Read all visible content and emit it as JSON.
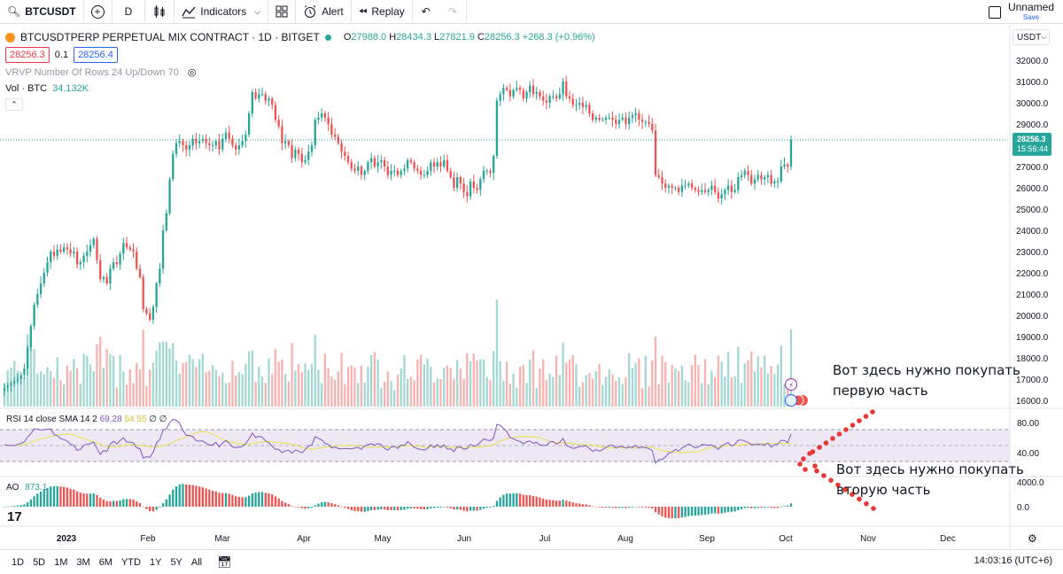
{
  "toolbar": {
    "symbol": "BTCUSDT",
    "interval": "D",
    "indicators_label": "Indicators",
    "alert_label": "Alert",
    "replay_label": "Replay",
    "layout_name": "Unnamed",
    "save_label": "Save"
  },
  "legend": {
    "title": "BTCUSDTPERP PERPETUAL MIX CONTRACT · 1D · BITGET",
    "o_label": "O",
    "o": "27988.0",
    "h_label": "H",
    "h": "28434.3",
    "l_label": "L",
    "l": "27821.9",
    "c_label": "C",
    "c": "28256.3",
    "change": "+268.3 (+0.96%)",
    "bid": "28256.3",
    "spread": "0.1",
    "ask": "28256.4",
    "vrvp": "VRVP Number Of Rows 24 Up/Down 70",
    "vol_label": "Vol · BTC",
    "vol_value": "34.132K"
  },
  "currency": "USDT",
  "price_tag": {
    "price": "28256.3",
    "countdown": "15:56:44"
  },
  "rsi": {
    "label": "RSI 14 close SMA 14 2",
    "v1": "69.28",
    "v2": "54.55",
    "z1": "∅",
    "z2": "∅"
  },
  "ao": {
    "label": "AO",
    "value": "873.1"
  },
  "annotations": {
    "buy1_line1": "Вот здесь нужно покупать",
    "buy1_line2": "первую часть",
    "buy2_line1": "Вот здесь нужно покупать",
    "buy2_line2": "вторую часть"
  },
  "bottom": {
    "ranges": [
      "1D",
      "5D",
      "1M",
      "3M",
      "6M",
      "YTD",
      "1Y",
      "5Y",
      "All"
    ],
    "clock": "14:03:16 (UTC+6)"
  },
  "colors": {
    "up": "#26a69a",
    "down": "#ef5350",
    "rsi_line": "#7e57c2",
    "rsi_sma": "#e8e24a",
    "rsi_band": "#ede7f6",
    "accent": "#2962ff"
  },
  "chart_data": [
    {
      "type": "candlestick",
      "title": "BTCUSDTPERP PERPETUAL MIX CONTRACT · 1D · BITGET",
      "x_ticks": [
        "2023",
        "Feb",
        "Mar",
        "Apr",
        "May",
        "Jun",
        "Jul",
        "Aug",
        "Sep",
        "Oct",
        "Nov",
        "Dec"
      ],
      "y_ticks": [
        "16000.0",
        "17000.0",
        "18000.0",
        "19000.0",
        "20000.0",
        "21000.0",
        "22000.0",
        "23000.0",
        "24000.0",
        "25000.0",
        "26000.0",
        "27000.0",
        "28000.0",
        "29000.0",
        "30000.0",
        "31000.0",
        "32000.0"
      ],
      "ylim": [
        16000,
        32300
      ],
      "last_price": 28256.3,
      "closes": [
        16600,
        16700,
        16800,
        16900,
        17000,
        17200,
        17500,
        18500,
        19500,
        20500,
        21000,
        21500,
        22000,
        22500,
        23000,
        22800,
        23100,
        23000,
        23200,
        23100,
        22900,
        23000,
        22400,
        22500,
        22800,
        23000,
        23300,
        23600,
        22600,
        21700,
        21800,
        21500,
        22200,
        22500,
        22400,
        22900,
        23400,
        23200,
        23100,
        23000,
        22200,
        21800,
        20300,
        20100,
        19800,
        20400,
        21500,
        22200,
        24000,
        24800,
        26400,
        27600,
        28100,
        28200,
        28000,
        27800,
        28000,
        28300,
        28100,
        28200,
        28300,
        28100,
        28000,
        28000,
        28200,
        27800,
        28300,
        28600,
        28300,
        28000,
        27800,
        28000,
        28200,
        28500,
        29500,
        30500,
        30200,
        30400,
        30400,
        30100,
        30200,
        29900,
        29200,
        28900,
        28100,
        28200,
        28000,
        27400,
        27800,
        27600,
        27200,
        27300,
        27700,
        28000,
        29200,
        29300,
        29500,
        29300,
        29000,
        28500,
        28400,
        28100,
        27700,
        27500,
        27200,
        26900,
        26800,
        27000,
        26600,
        26800,
        27200,
        27400,
        27000,
        27200,
        27300,
        27000,
        26600,
        26800,
        26800,
        26600,
        26800,
        26900,
        27300,
        27200,
        26900,
        26800,
        26600,
        26600,
        26800,
        27200,
        27000,
        27200,
        27000,
        27300,
        26800,
        26500,
        26000,
        26500,
        26200,
        25800,
        25600,
        26300,
        26000,
        25900,
        26400,
        26800,
        26800,
        26700,
        27500,
        30100,
        30400,
        30700,
        30600,
        30300,
        30600,
        30700,
        30600,
        30200,
        30500,
        30800,
        30400,
        30500,
        30300,
        30100,
        30000,
        30300,
        30300,
        30200,
        30400,
        31000,
        30300,
        30200,
        29900,
        29900,
        30000,
        29800,
        29900,
        29500,
        29200,
        29300,
        29200,
        29200,
        29300,
        29300,
        29200,
        29000,
        29200,
        29300,
        29000,
        29300,
        29400,
        29500,
        29200,
        29100,
        29100,
        29000,
        28700,
        26600,
        26500,
        26200,
        26000,
        26100,
        26000,
        26000,
        25800,
        26100,
        26100,
        26200,
        26000,
        25900,
        25800,
        25900,
        25800,
        25900,
        26100,
        25800,
        25500,
        25700,
        25900,
        26100,
        25800,
        25900,
        26500,
        26600,
        26800,
        26600,
        26200,
        26400,
        26600,
        26400,
        26500,
        26600,
        26200,
        26300,
        26300,
        27000,
        27100,
        27000,
        28256
      ],
      "volume_label": "Vol · BTC",
      "volume_last": "34.132K"
    },
    {
      "type": "line",
      "title": "RSI 14 close SMA 14 2",
      "y_ticks": [
        "40.00",
        "80.00"
      ],
      "series": [
        {
          "name": "RSI",
          "last": 69.28
        },
        {
          "name": "SMA",
          "last": 54.55
        }
      ]
    },
    {
      "type": "bar",
      "title": "AO",
      "y_ticks": [
        "0.0",
        "4000.0"
      ],
      "last": 873.1
    }
  ]
}
